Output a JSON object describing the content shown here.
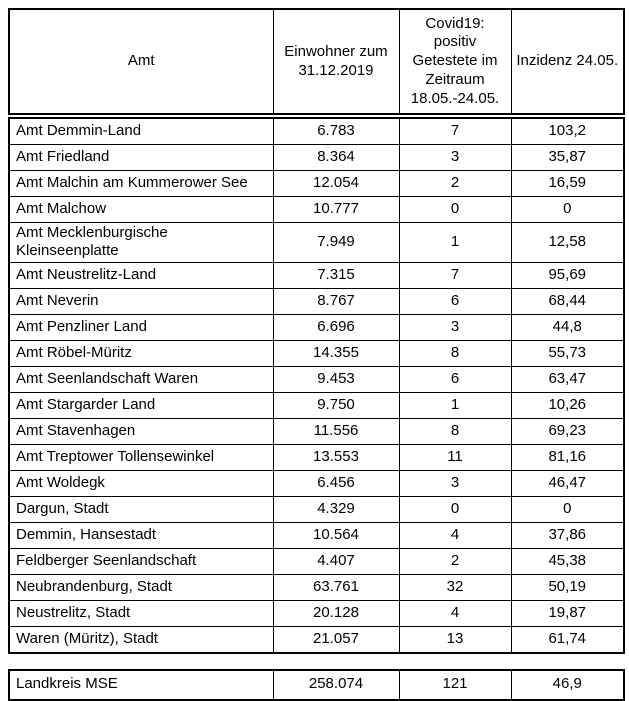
{
  "table": {
    "columns": [
      {
        "label": "Amt"
      },
      {
        "label": "Einwohner zum\n31.12.2019"
      },
      {
        "label": "Covid19:\npositiv\nGetestete im\nZeitraum\n18.05.-24.05."
      },
      {
        "label": "Inzidenz 24.05."
      }
    ],
    "rows": [
      [
        "Amt Demmin-Land",
        "6.783",
        "7",
        "103,2"
      ],
      [
        "Amt Friedland",
        "8.364",
        "3",
        "35,87"
      ],
      [
        "Amt Malchin am Kummerower See",
        "12.054",
        "2",
        "16,59"
      ],
      [
        "Amt Malchow",
        "10.777",
        "0",
        "0"
      ],
      [
        "Amt Mecklenburgische\nKleinseenplatte",
        "7.949",
        "1",
        "12,58"
      ],
      [
        "Amt Neustrelitz-Land",
        "7.315",
        "7",
        "95,69"
      ],
      [
        "Amt Neverin",
        "8.767",
        "6",
        "68,44"
      ],
      [
        "Amt Penzliner Land",
        "6.696",
        "3",
        "44,8"
      ],
      [
        "Amt Röbel-Müritz",
        "14.355",
        "8",
        "55,73"
      ],
      [
        "Amt Seenlandschaft Waren",
        "9.453",
        "6",
        "63,47"
      ],
      [
        "Amt Stargarder Land",
        "9.750",
        "1",
        "10,26"
      ],
      [
        "Amt Stavenhagen",
        "11.556",
        "8",
        "69,23"
      ],
      [
        "Amt Treptower Tollensewinkel",
        "13.553",
        "11",
        "81,16"
      ],
      [
        "Amt Woldegk",
        "6.456",
        "3",
        "46,47"
      ],
      [
        "Dargun, Stadt",
        "4.329",
        "0",
        "0"
      ],
      [
        "Demmin, Hansestadt",
        "10.564",
        "4",
        "37,86"
      ],
      [
        "Feldberger Seenlandschaft",
        "4.407",
        "2",
        "45,38"
      ],
      [
        "Neubrandenburg, Stadt",
        "63.761",
        "32",
        "50,19"
      ],
      [
        "Neustrelitz, Stadt",
        "20.128",
        "4",
        "19,87"
      ],
      [
        "Waren (Müritz), Stadt",
        "21.057",
        "13",
        "61,74"
      ]
    ],
    "footer": [
      "Landkreis MSE",
      "258.074",
      "121",
      "46,9"
    ]
  }
}
